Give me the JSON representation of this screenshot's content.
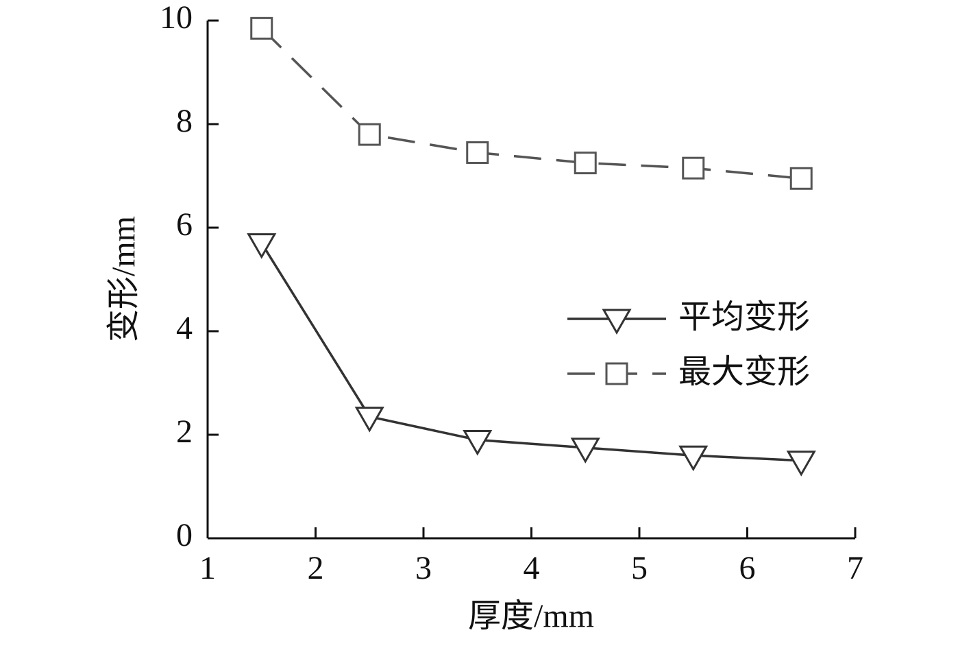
{
  "chart_data": {
    "type": "line",
    "x": [
      1.5,
      2.5,
      3.5,
      4.5,
      5.5,
      6.5
    ],
    "series": [
      {
        "name": "平均变形",
        "color": "#333333",
        "dash": "solid",
        "marker": "triangle-down",
        "values": [
          5.7,
          2.35,
          1.9,
          1.75,
          1.6,
          1.5
        ]
      },
      {
        "name": "最大变形",
        "color": "#555555",
        "dash": "dashed",
        "marker": "square",
        "values": [
          9.85,
          7.8,
          7.45,
          7.25,
          7.15,
          6.95
        ]
      }
    ],
    "xlabel": "厚度/mm",
    "ylabel": "变形/mm",
    "xlim": [
      1,
      7
    ],
    "xticks": [
      1,
      2,
      3,
      4,
      5,
      6,
      7
    ],
    "ylim": [
      0,
      10
    ],
    "yticks": [
      0,
      2,
      4,
      6,
      8,
      10
    ],
    "grid": false,
    "legend": "right"
  }
}
